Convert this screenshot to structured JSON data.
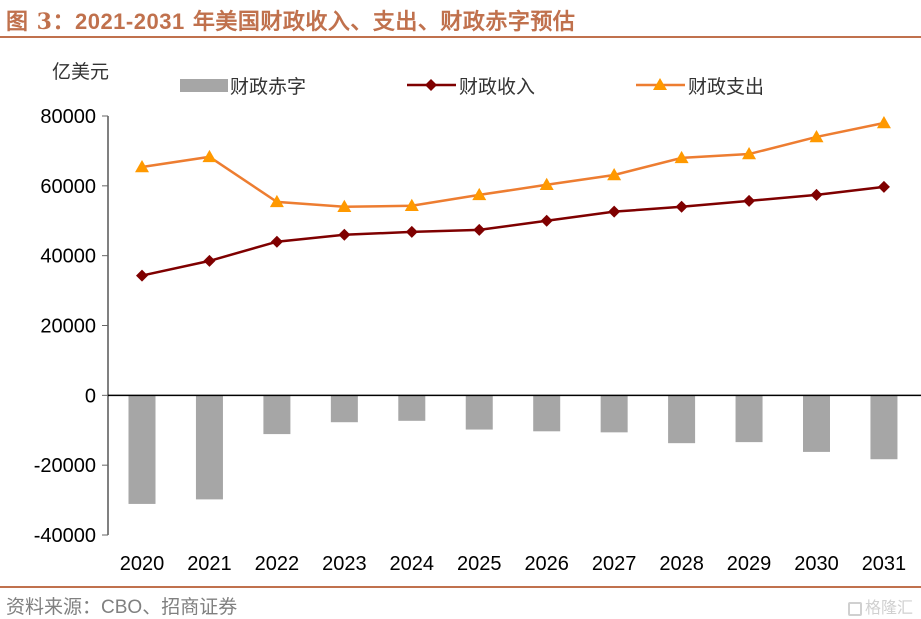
{
  "header": {
    "title_prefix": "图 3：",
    "title_years": "2021-2031",
    "title_suffix": " 年美国财政收入、支出、财政赤字预估"
  },
  "footer": {
    "source_prefix": "资料来源：",
    "source_latin": "CBO",
    "source_suffix": "、招商证券",
    "watermark": "格隆汇"
  },
  "colors": {
    "accent": "#c0714d",
    "deficit_bar": "#a6a6a6",
    "revenue_line": "#7f0000",
    "spending_line": "#ed7d31",
    "spending_marker": "#ff9900"
  },
  "chart_data": {
    "type": "bar+line",
    "title": "2021-2031 年美国财政收入、支出、财政赤字预估",
    "ylabel": "亿美元",
    "xlabel": "",
    "ylim": [
      -40000,
      80000
    ],
    "yticks": [
      80000,
      60000,
      40000,
      20000,
      0,
      -20000,
      -40000
    ],
    "ytick_labels": [
      "80000",
      "60000",
      "40000",
      "20000",
      "0",
      "-20000",
      "-40000"
    ],
    "categories": [
      "2020",
      "2021",
      "2022",
      "2023",
      "2024",
      "2025",
      "2026",
      "2027",
      "2028",
      "2029",
      "2030",
      "2031"
    ],
    "grid": false,
    "legend_position": "top",
    "series": [
      {
        "name": "财政赤字",
        "type": "bar",
        "values": [
          -31100,
          -29800,
          -11100,
          -7700,
          -7300,
          -9800,
          -10300,
          -10600,
          -13700,
          -13400,
          -16200,
          -18300
        ]
      },
      {
        "name": "财政收入",
        "type": "line",
        "marker": "diamond",
        "values": [
          34300,
          38500,
          44000,
          46000,
          46800,
          47400,
          50000,
          52600,
          54000,
          55700,
          57400,
          59700
        ]
      },
      {
        "name": "财政支出",
        "type": "line",
        "marker": "triangle",
        "values": [
          65400,
          68300,
          55400,
          54000,
          54300,
          57400,
          60300,
          63100,
          68000,
          69100,
          74000,
          78000
        ]
      }
    ]
  }
}
